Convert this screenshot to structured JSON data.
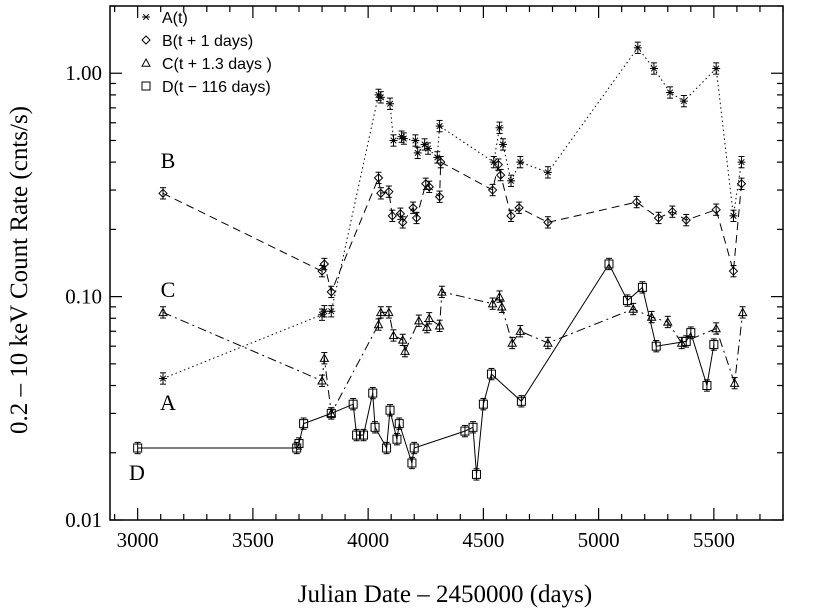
{
  "chart_data": {
    "type": "line",
    "title": "",
    "xlabel": "Julian Date – 2450000 (days)",
    "ylabel": "0.2 – 10 keV Count Rate (cnts/s)",
    "xlim": [
      2880,
      5800
    ],
    "ylim": [
      0.01,
      2.0
    ],
    "yscale": "log",
    "grid": false,
    "legend_position": "top-left",
    "x_ticks": [
      3000,
      3500,
      4000,
      4500,
      5000,
      5500
    ],
    "x_tick_labels": [
      "3000",
      "3500",
      "4000",
      "4500",
      "5000",
      "5500"
    ],
    "y_ticks": [
      0.01,
      0.1,
      1.0
    ],
    "y_tick_labels": [
      "0.01",
      "0.10",
      "1.00"
    ],
    "series": [
      {
        "name": "A(t)",
        "marker": "asterisk",
        "linestyle": "dotted",
        "annotation": "A",
        "x": [
          3110,
          3800,
          3810,
          3840,
          4045,
          4055,
          4095,
          4110,
          4145,
          4155,
          4205,
          4215,
          4245,
          4260,
          4300,
          4310,
          4545,
          4570,
          4585,
          4620,
          4660,
          4780,
          5170,
          5240,
          5310,
          5370,
          5510,
          5585,
          5620
        ],
        "y": [
          0.043,
          0.083,
          0.086,
          0.086,
          0.8,
          0.78,
          0.73,
          0.5,
          0.52,
          0.51,
          0.5,
          0.44,
          0.48,
          0.46,
          0.42,
          0.58,
          0.4,
          0.57,
          0.48,
          0.33,
          0.4,
          0.36,
          1.3,
          1.05,
          0.82,
          0.75,
          1.05,
          0.23,
          0.4
        ]
      },
      {
        "name": "B(t + 1 days)",
        "marker": "diamond",
        "linestyle": "dashed",
        "annotation": "B",
        "x": [
          3110,
          3800,
          3810,
          3840,
          4045,
          4055,
          4090,
          4105,
          4140,
          4150,
          4195,
          4210,
          4250,
          4265,
          4310,
          4315,
          4540,
          4565,
          4575,
          4620,
          4655,
          4780,
          5165,
          5260,
          5320,
          5380,
          5510,
          5585,
          5620
        ],
        "y": [
          0.29,
          0.13,
          0.14,
          0.105,
          0.34,
          0.29,
          0.295,
          0.23,
          0.235,
          0.215,
          0.25,
          0.225,
          0.32,
          0.31,
          0.28,
          0.4,
          0.3,
          0.39,
          0.35,
          0.23,
          0.25,
          0.215,
          0.265,
          0.225,
          0.24,
          0.22,
          0.245,
          0.13,
          0.32
        ]
      },
      {
        "name": "C(t + 1.3 days )",
        "marker": "triangle",
        "linestyle": "dashdot",
        "annotation": "C",
        "x": [
          3110,
          3800,
          3810,
          3840,
          4045,
          4055,
          4090,
          4110,
          4150,
          4160,
          4220,
          4255,
          4265,
          4310,
          4320,
          4540,
          4570,
          4580,
          4625,
          4660,
          4780,
          5150,
          5230,
          5300,
          5360,
          5510,
          5590,
          5625
        ],
        "y": [
          0.085,
          0.042,
          0.053,
          0.03,
          0.075,
          0.085,
          0.085,
          0.067,
          0.064,
          0.057,
          0.078,
          0.073,
          0.08,
          0.074,
          0.105,
          0.093,
          0.1,
          0.09,
          0.062,
          0.07,
          0.062,
          0.088,
          0.081,
          0.077,
          0.062,
          0.072,
          0.041,
          0.085
        ]
      },
      {
        "name": "D(t − 116 days)",
        "marker": "square",
        "linestyle": "solid",
        "annotation": "D",
        "x": [
          3000,
          3690,
          3700,
          3720,
          3840,
          3935,
          3950,
          3980,
          4020,
          4030,
          4080,
          4095,
          4125,
          4135,
          4190,
          4200,
          4420,
          4455,
          4470,
          4500,
          4535,
          4665,
          5045,
          5125,
          5190,
          5250,
          5380,
          5400,
          5470,
          5500
        ],
        "y": [
          0.021,
          0.021,
          0.022,
          0.027,
          0.03,
          0.033,
          0.024,
          0.024,
          0.037,
          0.026,
          0.021,
          0.031,
          0.023,
          0.027,
          0.018,
          0.021,
          0.025,
          0.026,
          0.016,
          0.033,
          0.045,
          0.034,
          0.14,
          0.096,
          0.11,
          0.06,
          0.063,
          0.069,
          0.04,
          0.061
        ]
      }
    ]
  }
}
